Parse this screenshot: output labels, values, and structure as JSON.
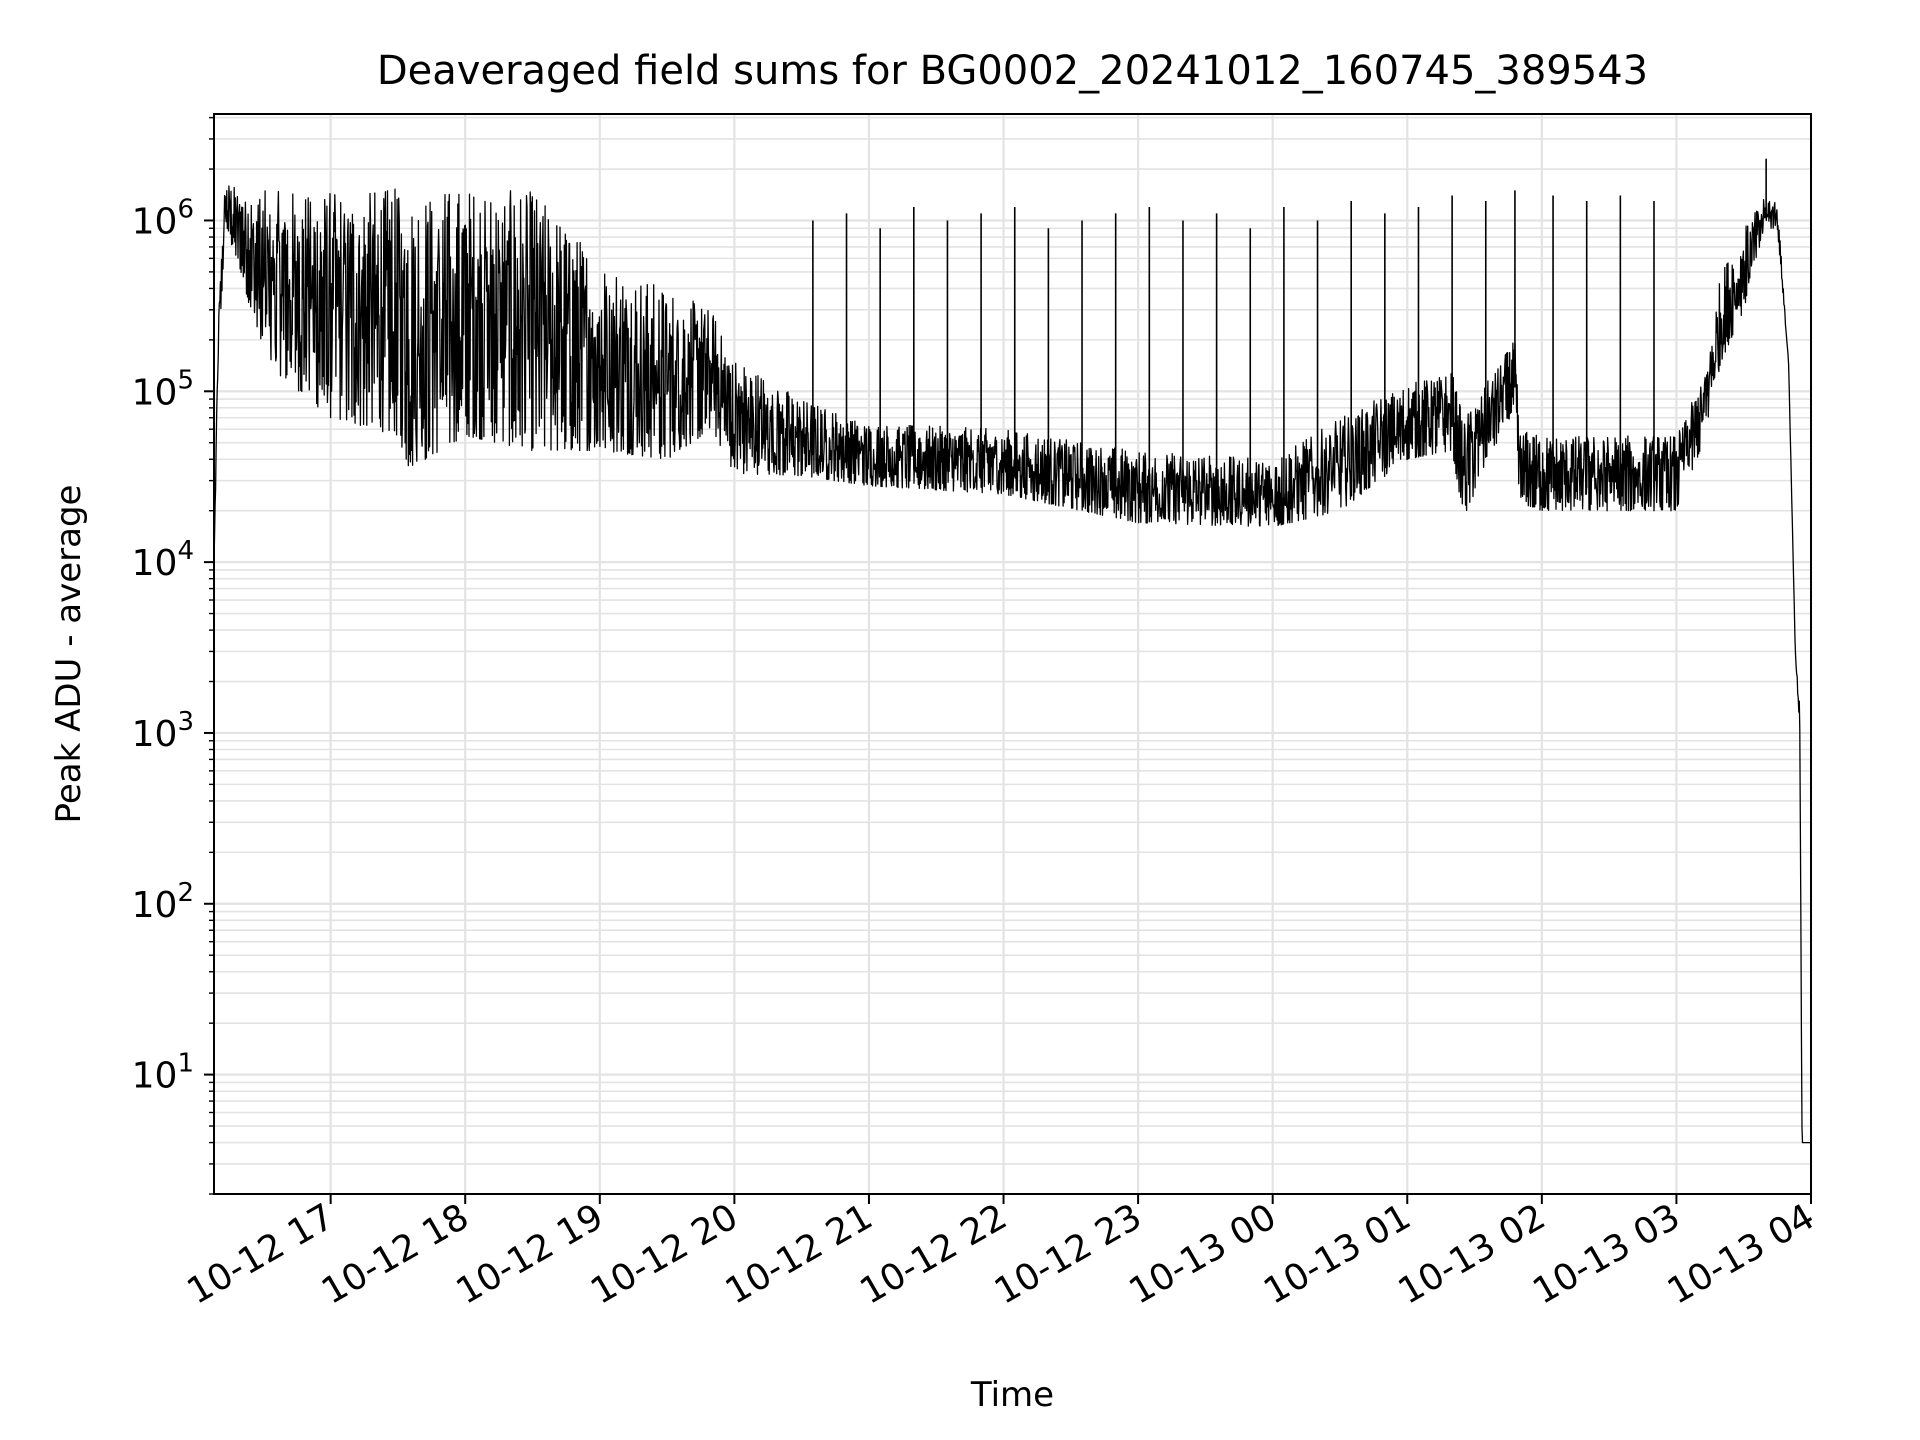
{
  "chart_data": {
    "type": "line",
    "title": "Deaveraged field sums for BG0002_20241012_160745_389543",
    "xlabel": "Time",
    "ylabel": "Peak ADU - average",
    "yscale": "log",
    "ylim": [
      2,
      4200000
    ],
    "xlim": [
      "2024-10-12 16:08",
      "2024-10-13 04:00"
    ],
    "grid": true,
    "grid_minor": true,
    "x_ticks": [
      {
        "t": "2024-10-12 17:00",
        "label": "10-12 17"
      },
      {
        "t": "2024-10-12 18:00",
        "label": "10-12 18"
      },
      {
        "t": "2024-10-12 19:00",
        "label": "10-12 19"
      },
      {
        "t": "2024-10-12 20:00",
        "label": "10-12 20"
      },
      {
        "t": "2024-10-12 21:00",
        "label": "10-12 21"
      },
      {
        "t": "2024-10-12 22:00",
        "label": "10-12 22"
      },
      {
        "t": "2024-10-12 23:00",
        "label": "10-12 23"
      },
      {
        "t": "2024-10-13 00:00",
        "label": "10-13 00"
      },
      {
        "t": "2024-10-13 01:00",
        "label": "10-13 01"
      },
      {
        "t": "2024-10-13 02:00",
        "label": "10-13 02"
      },
      {
        "t": "2024-10-13 03:00",
        "label": "10-13 03"
      },
      {
        "t": "2024-10-13 04:00",
        "label": "10-13 04"
      }
    ],
    "y_ticks": [
      {
        "v": 10,
        "base": "10",
        "exp": "1"
      },
      {
        "v": 100,
        "base": "10",
        "exp": "2"
      },
      {
        "v": 1000,
        "base": "10",
        "exp": "3"
      },
      {
        "v": 10000,
        "base": "10",
        "exp": "4"
      },
      {
        "v": 100000,
        "base": "10",
        "exp": "5"
      },
      {
        "v": 1000000,
        "base": "10",
        "exp": "6"
      }
    ],
    "series": [
      {
        "color": "#000000",
        "envelope": [
          {
            "t": "2024-10-12 16:08",
            "lo": 10000,
            "hi": 10000
          },
          {
            "t": "2024-10-12 16:10",
            "lo": 150000,
            "hi": 300000
          },
          {
            "t": "2024-10-12 16:13",
            "lo": 900000,
            "hi": 1700000
          },
          {
            "t": "2024-10-12 16:20",
            "lo": 500000,
            "hi": 1500000
          },
          {
            "t": "2024-10-12 16:30",
            "lo": 150000,
            "hi": 1500000
          },
          {
            "t": "2024-10-12 17:00",
            "lo": 70000,
            "hi": 1500000
          },
          {
            "t": "2024-10-12 17:30",
            "lo": 55000,
            "hi": 1550000
          },
          {
            "t": "2024-10-12 17:35",
            "lo": 35000,
            "hi": 1500000
          },
          {
            "t": "2024-10-12 18:00",
            "lo": 55000,
            "hi": 1550000
          },
          {
            "t": "2024-10-12 18:30",
            "lo": 45000,
            "hi": 1500000
          },
          {
            "t": "2024-10-12 19:00",
            "lo": 45000,
            "hi": 600000
          },
          {
            "t": "2024-10-12 19:30",
            "lo": 40000,
            "hi": 400000
          },
          {
            "t": "2024-10-12 19:50",
            "lo": 60000,
            "hi": 300000
          },
          {
            "t": "2024-10-12 20:00",
            "lo": 33000,
            "hi": 160000
          },
          {
            "t": "2024-10-12 20:30",
            "lo": 32000,
            "hi": 90000
          },
          {
            "t": "2024-10-12 21:00",
            "lo": 28000,
            "hi": 65000
          },
          {
            "t": "2024-10-12 22:00",
            "lo": 25000,
            "hi": 60000
          },
          {
            "t": "2024-10-12 23:00",
            "lo": 17000,
            "hi": 45000
          },
          {
            "t": "2024-10-13 00:00",
            "lo": 16000,
            "hi": 40000
          },
          {
            "t": "2024-10-13 00:30",
            "lo": 20000,
            "hi": 70000
          },
          {
            "t": "2024-10-13 01:00",
            "lo": 40000,
            "hi": 110000
          },
          {
            "t": "2024-10-13 01:20",
            "lo": 45000,
            "hi": 130000
          },
          {
            "t": "2024-10-13 01:25",
            "lo": 18000,
            "hi": 70000
          },
          {
            "t": "2024-10-13 01:40",
            "lo": 50000,
            "hi": 140000
          },
          {
            "t": "2024-10-13 01:48",
            "lo": 80000,
            "hi": 200000
          },
          {
            "t": "2024-10-13 01:50",
            "lo": 22000,
            "hi": 60000
          },
          {
            "t": "2024-10-13 02:00",
            "lo": 20000,
            "hi": 55000
          },
          {
            "t": "2024-10-13 03:00",
            "lo": 20000,
            "hi": 55000
          },
          {
            "t": "2024-10-13 03:12",
            "lo": 50000,
            "hi": 120000
          },
          {
            "t": "2024-10-13 03:20",
            "lo": 150000,
            "hi": 500000
          },
          {
            "t": "2024-10-13 03:30",
            "lo": 300000,
            "hi": 900000
          },
          {
            "t": "2024-10-13 03:40",
            "lo": 900000,
            "hi": 1400000
          },
          {
            "t": "2024-10-13 03:45",
            "lo": 900000,
            "hi": 1300000
          },
          {
            "t": "2024-10-13 03:50",
            "lo": 150000,
            "hi": 150000
          },
          {
            "t": "2024-10-13 03:53",
            "lo": 3000,
            "hi": 3000
          },
          {
            "t": "2024-10-13 03:55",
            "lo": 1000,
            "hi": 1500
          },
          {
            "t": "2024-10-13 03:56",
            "lo": 4,
            "hi": 4
          },
          {
            "t": "2024-10-13 04:00",
            "lo": 4,
            "hi": 4
          }
        ],
        "spikes": [
          {
            "t": "2024-10-12 20:35",
            "v": 1000000
          },
          {
            "t": "2024-10-12 20:50",
            "v": 1100000
          },
          {
            "t": "2024-10-12 21:05",
            "v": 900000
          },
          {
            "t": "2024-10-12 21:20",
            "v": 1200000
          },
          {
            "t": "2024-10-12 21:35",
            "v": 1000000
          },
          {
            "t": "2024-10-12 21:50",
            "v": 1100000
          },
          {
            "t": "2024-10-12 22:05",
            "v": 1200000
          },
          {
            "t": "2024-10-12 22:20",
            "v": 900000
          },
          {
            "t": "2024-10-12 22:35",
            "v": 1000000
          },
          {
            "t": "2024-10-12 22:50",
            "v": 1100000
          },
          {
            "t": "2024-10-12 23:05",
            "v": 1200000
          },
          {
            "t": "2024-10-12 23:20",
            "v": 1000000
          },
          {
            "t": "2024-10-12 23:35",
            "v": 1100000
          },
          {
            "t": "2024-10-12 23:50",
            "v": 900000
          },
          {
            "t": "2024-10-13 00:05",
            "v": 1200000
          },
          {
            "t": "2024-10-13 00:20",
            "v": 1000000
          },
          {
            "t": "2024-10-13 00:35",
            "v": 1300000
          },
          {
            "t": "2024-10-13 00:50",
            "v": 1100000
          },
          {
            "t": "2024-10-13 01:05",
            "v": 1200000
          },
          {
            "t": "2024-10-13 01:20",
            "v": 1400000
          },
          {
            "t": "2024-10-13 01:35",
            "v": 1300000
          },
          {
            "t": "2024-10-13 01:48",
            "v": 1500000
          },
          {
            "t": "2024-10-13 02:05",
            "v": 1400000
          },
          {
            "t": "2024-10-13 02:20",
            "v": 1300000
          },
          {
            "t": "2024-10-13 02:35",
            "v": 1400000
          },
          {
            "t": "2024-10-13 02:50",
            "v": 1300000
          },
          {
            "t": "2024-10-13 03:40",
            "v": 2300000
          }
        ]
      }
    ]
  }
}
